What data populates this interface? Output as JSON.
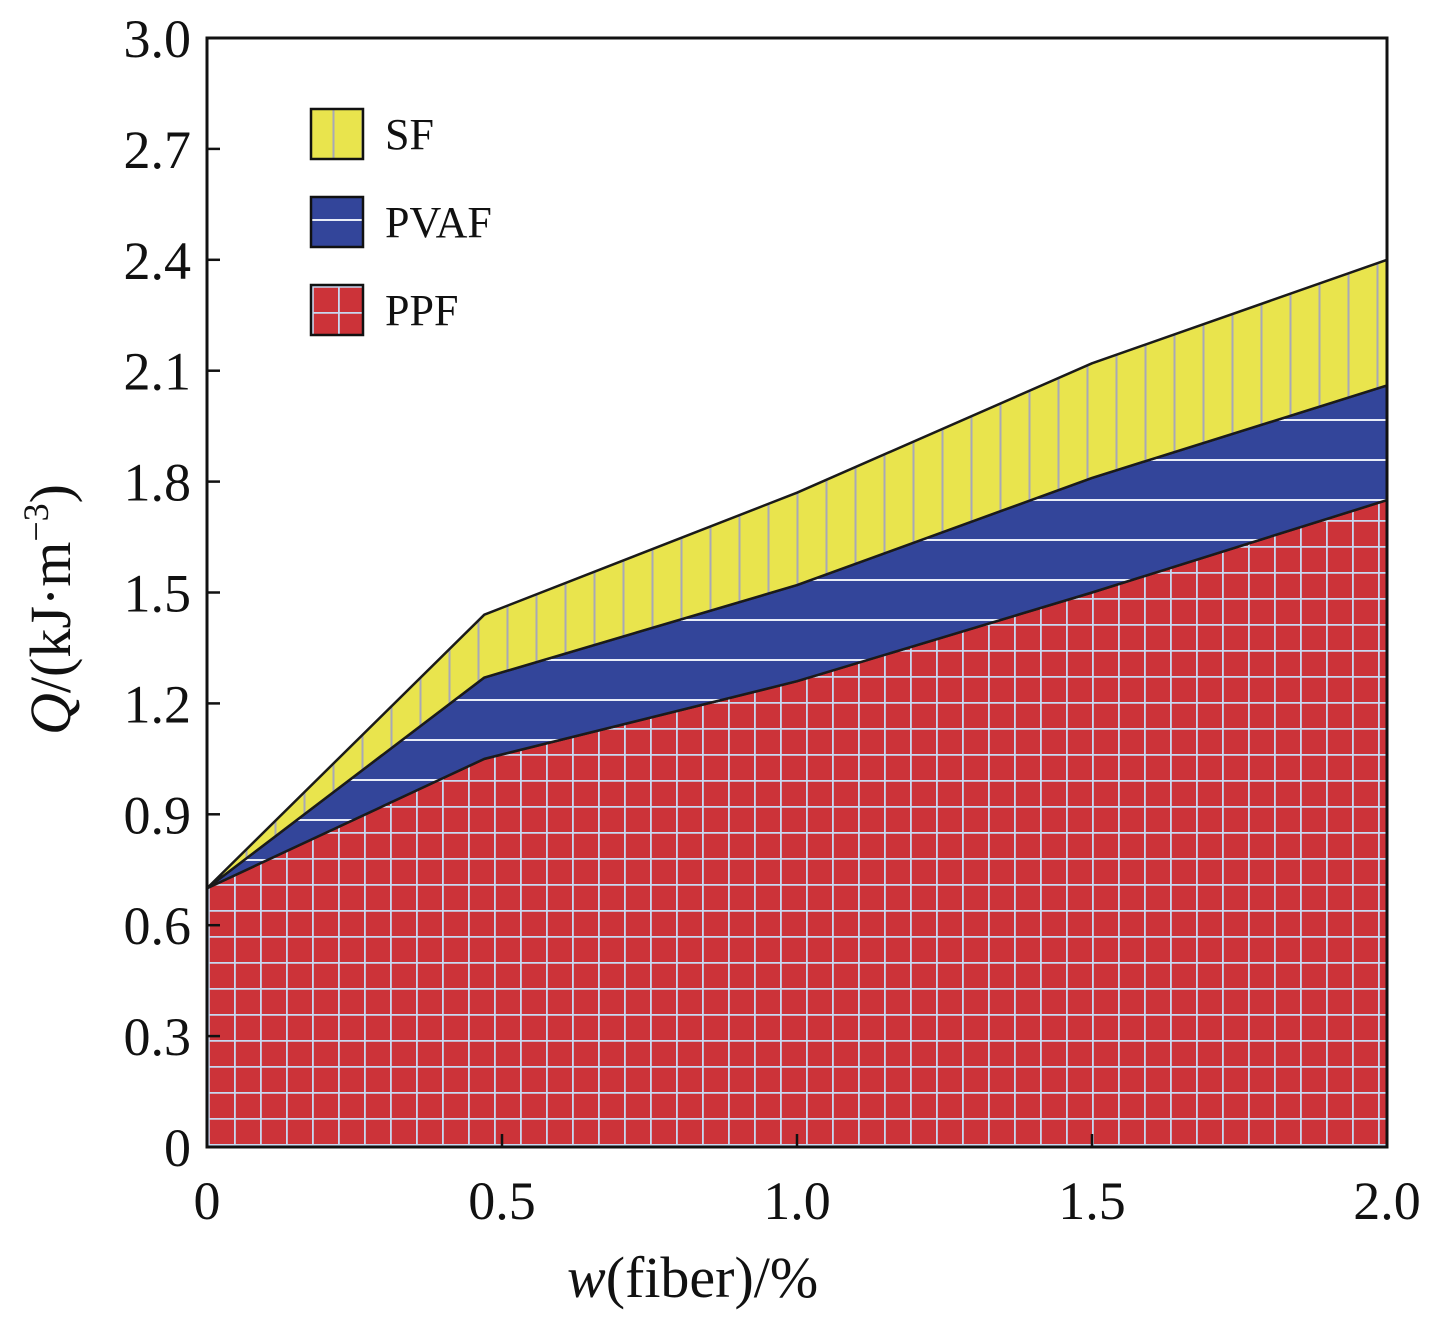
{
  "chart_data": {
    "type": "area",
    "stacked": true,
    "title": "",
    "x": [
      0,
      0.47,
      1.0,
      1.5,
      2.0
    ],
    "series": [
      {
        "name": "PPF",
        "values": [
          0.7,
          1.05,
          1.26,
          1.5,
          1.75
        ],
        "color": "#cc3339",
        "pattern": "grid"
      },
      {
        "name": "PVAF",
        "values": [
          0.0,
          0.22,
          0.26,
          0.31,
          0.31
        ],
        "color": "#33459a",
        "pattern": "horizontal"
      },
      {
        "name": "SF",
        "values": [
          0.0,
          0.17,
          0.25,
          0.31,
          0.34
        ],
        "color": "#e9e44d",
        "pattern": "vertical"
      }
    ],
    "xlabel_var": "w",
    "xlabel_rest": "(fiber)/%",
    "ylabel_var": "Q",
    "ylabel_rest": "/(kJ·m",
    "ylabel_sup": "−3",
    "ylabel_close": ")",
    "xlim": [
      0,
      2.0
    ],
    "ylim": [
      0,
      3.0
    ],
    "xticks": [
      0,
      0.5,
      1.0,
      1.5,
      2.0
    ],
    "xtick_labels": [
      "0",
      "0.5",
      "1.0",
      "1.5",
      "2.0"
    ],
    "yticks": [
      0,
      0.3,
      0.6,
      0.9,
      1.2,
      1.5,
      1.8,
      2.1,
      2.4,
      2.7,
      3.0
    ],
    "ytick_labels": [
      "0",
      "0.3",
      "0.6",
      "0.9",
      "1.2",
      "1.5",
      "1.8",
      "2.1",
      "2.4",
      "2.7",
      "3.0"
    ],
    "legend_order": [
      "SF",
      "PVAF",
      "PPF"
    ],
    "legend_position": "top-left",
    "grid": false
  }
}
